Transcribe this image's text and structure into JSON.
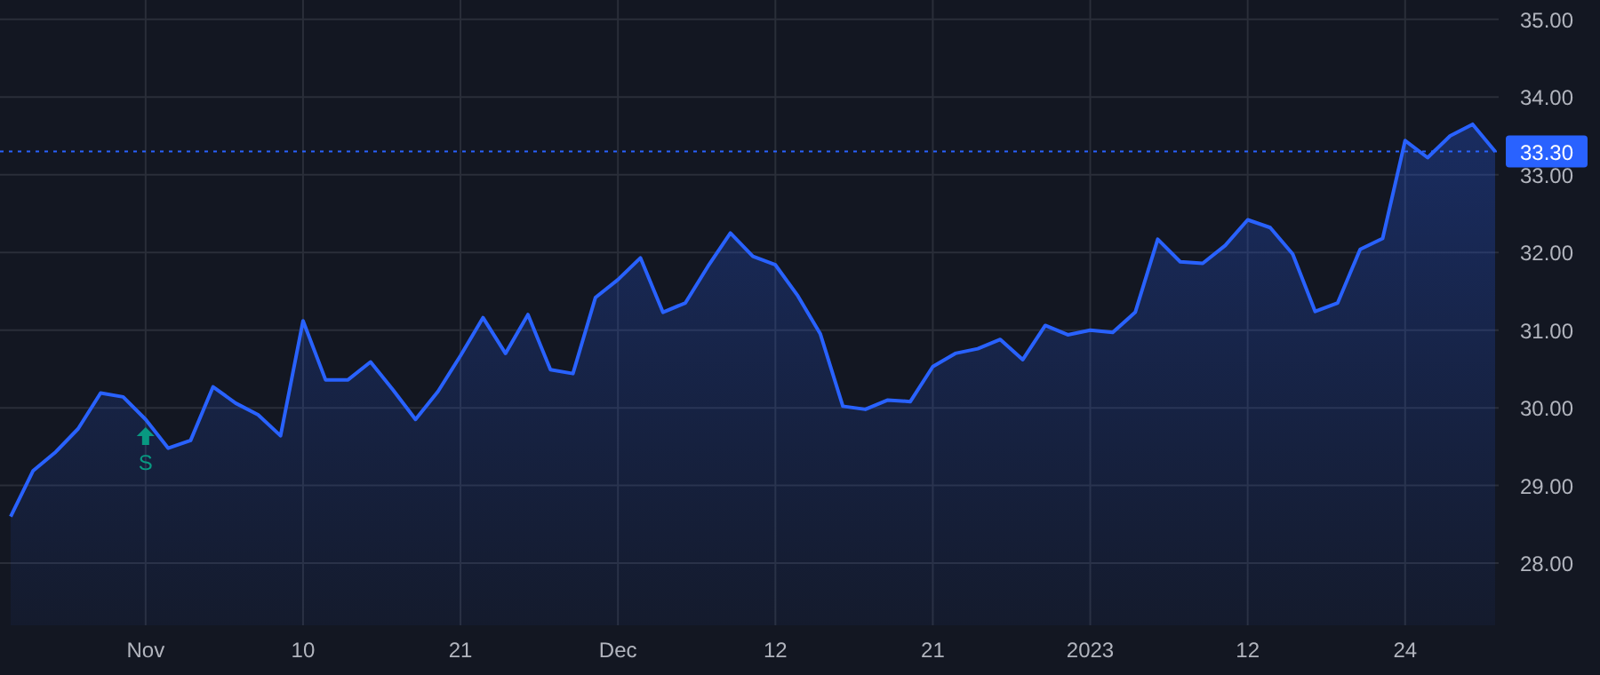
{
  "chart_data": {
    "type": "area",
    "categories": [
      null,
      null,
      null,
      null,
      null,
      null,
      "Nov",
      null,
      null,
      null,
      null,
      null,
      null,
      "10",
      null,
      null,
      null,
      null,
      null,
      null,
      "21",
      null,
      null,
      null,
      null,
      null,
      null,
      "Dec",
      null,
      null,
      null,
      null,
      null,
      null,
      "12",
      null,
      null,
      null,
      null,
      null,
      null,
      "21",
      null,
      null,
      null,
      null,
      null,
      null,
      "2023",
      null,
      null,
      null,
      null,
      null,
      null,
      "12",
      null,
      null,
      null,
      null,
      null,
      null,
      "24",
      null,
      null,
      null,
      null
    ],
    "series": [
      {
        "color": "#2962ff",
        "values": [
          28.6,
          29.19,
          29.43,
          29.73,
          30.19,
          30.14,
          29.85,
          29.48,
          29.58,
          30.27,
          30.06,
          29.91,
          29.64,
          31.12,
          30.36,
          30.36,
          30.59,
          30.23,
          29.85,
          30.21,
          30.67,
          31.16,
          30.7,
          31.2,
          30.49,
          30.44,
          31.42,
          31.65,
          31.93,
          31.23,
          31.35,
          31.82,
          32.25,
          31.95,
          31.84,
          31.44,
          30.95,
          30.02,
          29.98,
          30.1,
          30.08,
          30.53,
          30.7,
          30.76,
          30.88,
          30.62,
          31.06,
          30.94,
          31.0,
          30.97,
          31.23,
          32.17,
          31.88,
          31.86,
          32.09,
          32.42,
          32.32,
          31.98,
          31.24,
          31.35,
          32.04,
          32.18,
          33.44,
          33.22,
          33.5,
          33.65,
          33.3
        ]
      }
    ],
    "ylim": [
      27.2,
      35.25
    ],
    "yticks": [
      {
        "value": 28,
        "label": "28.00"
      },
      {
        "value": 29,
        "label": "29.00"
      },
      {
        "value": 30,
        "label": "30.00"
      },
      {
        "value": 31,
        "label": "31.00"
      },
      {
        "value": 32,
        "label": "32.00"
      },
      {
        "value": 33,
        "label": "33.00"
      },
      {
        "value": 34,
        "label": "34.00"
      },
      {
        "value": 35,
        "label": "35.00"
      }
    ],
    "grid": true,
    "ref_lines": [
      {
        "axis": "y",
        "value": 33.3,
        "label": "33.30",
        "color": "#2962ff",
        "line_style": "dotted"
      }
    ],
    "annotations": [
      {
        "text": "S",
        "x": "Nov",
        "y": 29.75
      }
    ]
  }
}
